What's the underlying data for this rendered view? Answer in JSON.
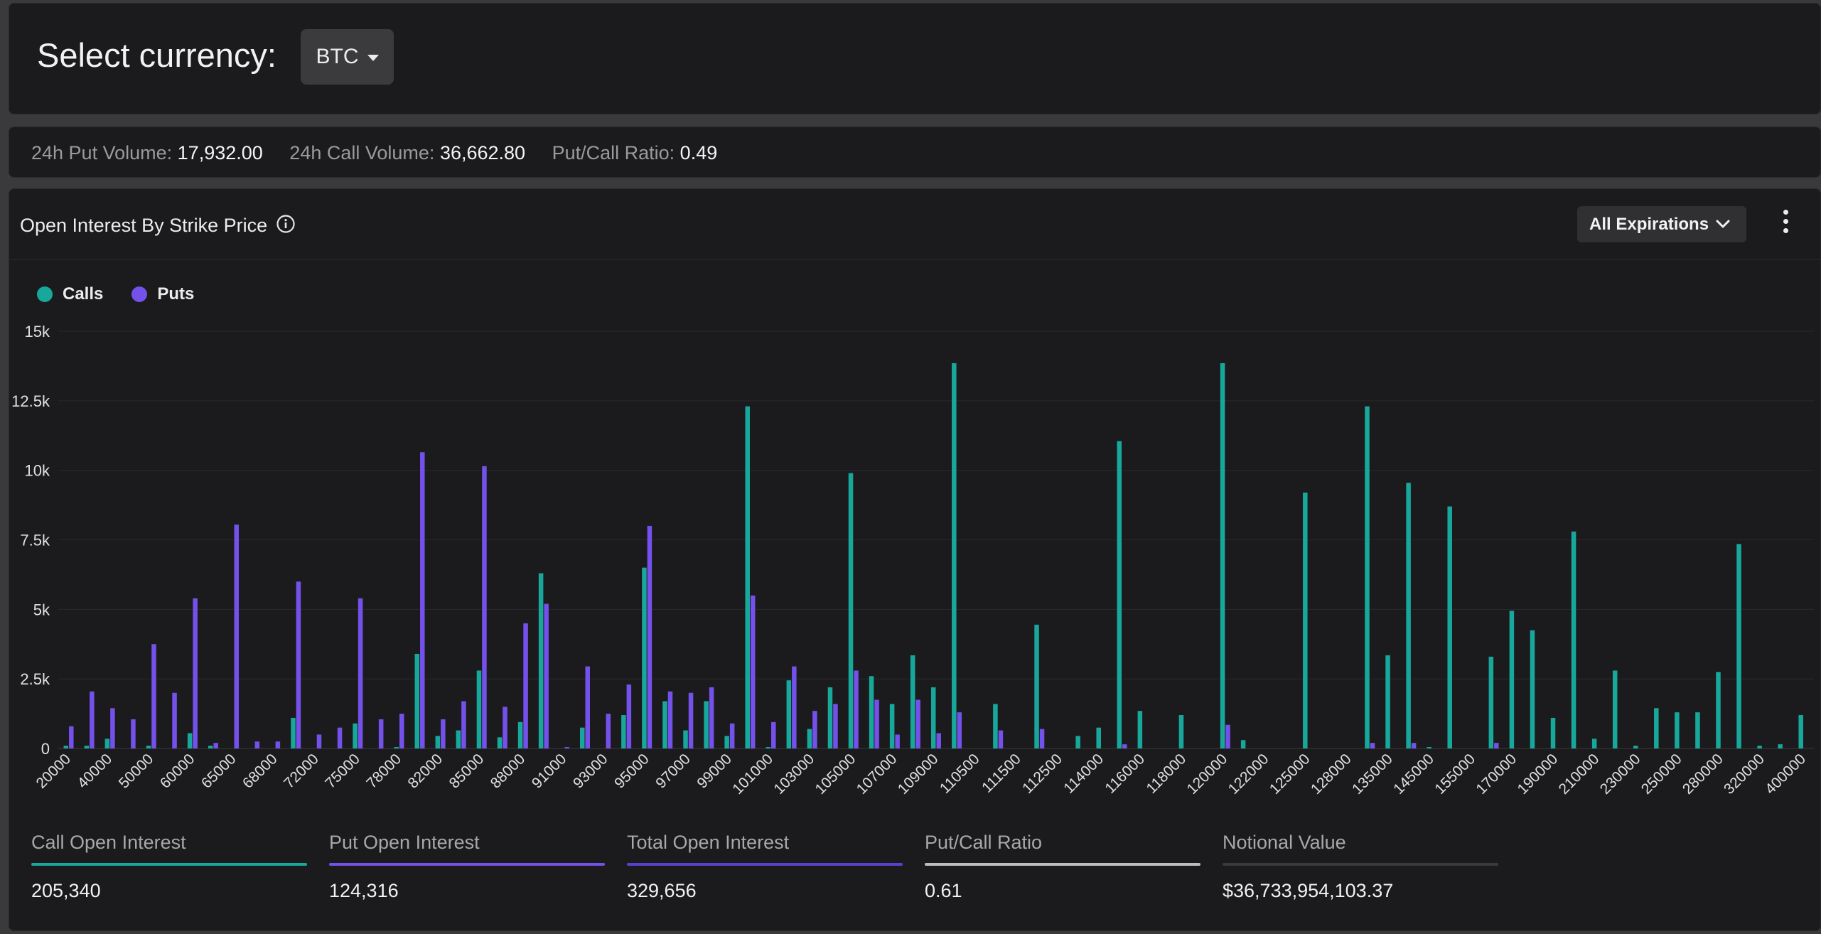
{
  "currency": {
    "label": "Select currency:",
    "selected": "BTC"
  },
  "volume": {
    "put_label": "24h Put Volume:",
    "put_value": "17,932.00",
    "call_label": "24h Call Volume:",
    "call_value": "36,662.80",
    "ratio_label": "Put/Call Ratio:",
    "ratio_value": "0.49"
  },
  "panel": {
    "title": "Open Interest By Strike Price",
    "expiry_button": "All Expirations"
  },
  "colors": {
    "calls": "#17a89b",
    "puts": "#7451ea",
    "total": "#5c3fd1",
    "ratio": "#bdbdbd",
    "notional": "#3a3a3c"
  },
  "stats": [
    {
      "label": "Call Open Interest",
      "value": "205,340",
      "color_key": "calls"
    },
    {
      "label": "Put Open Interest",
      "value": "124,316",
      "color_key": "puts"
    },
    {
      "label": "Total Open Interest",
      "value": "329,656",
      "color_key": "total"
    },
    {
      "label": "Put/Call Ratio",
      "value": "0.61",
      "color_key": "ratio"
    },
    {
      "label": "Notional Value",
      "value": "$36,733,954,103.37",
      "color_key": "notional"
    }
  ],
  "chart_data": {
    "type": "bar",
    "title": "",
    "xlabel": "",
    "ylabel": "",
    "ylim": [
      0,
      15000
    ],
    "yticks": [
      0,
      2500,
      5000,
      7500,
      10000,
      12500,
      15000
    ],
    "ytick_labels": [
      "0",
      "2.5k",
      "5k",
      "7.5k",
      "10k",
      "12.5k",
      "15k"
    ],
    "grid": true,
    "legend": "top-left",
    "categories": [
      "20000",
      "30000",
      "40000",
      "45000",
      "50000",
      "55000",
      "60000",
      "62000",
      "65000",
      "66000",
      "68000",
      "70000",
      "72000",
      "74000",
      "75000",
      "76000",
      "78000",
      "80000",
      "82000",
      "84000",
      "85000",
      "86000",
      "88000",
      "90000",
      "91000",
      "92000",
      "93000",
      "94000",
      "95000",
      "96000",
      "97000",
      "98000",
      "99000",
      "100000",
      "101000",
      "102000",
      "103000",
      "104000",
      "105000",
      "106000",
      "107000",
      "108000",
      "109000",
      "110000",
      "110500",
      "111000",
      "111500",
      "112000",
      "112500",
      "113000",
      "114000",
      "115000",
      "116000",
      "117000",
      "118000",
      "119000",
      "120000",
      "121000",
      "122000",
      "123000",
      "125000",
      "126000",
      "128000",
      "130000",
      "135000",
      "140000",
      "145000",
      "150000",
      "155000",
      "160000",
      "170000",
      "180000",
      "190000",
      "200000",
      "210000",
      "220000",
      "230000",
      "240000",
      "250000",
      "260000",
      "280000",
      "300000",
      "320000",
      "350000",
      "400000"
    ],
    "tick_labels": [
      "20000",
      "40000",
      "50000",
      "60000",
      "65000",
      "68000",
      "72000",
      "75000",
      "78000",
      "82000",
      "85000",
      "88000",
      "91000",
      "93000",
      "95000",
      "97000",
      "99000",
      "101000",
      "103000",
      "105000",
      "107000",
      "109000",
      "110500",
      "111500",
      "112500",
      "114000",
      "116000",
      "118000",
      "120000",
      "122000",
      "125000",
      "128000",
      "135000",
      "145000",
      "155000",
      "170000",
      "190000",
      "210000",
      "230000",
      "250000",
      "280000",
      "320000",
      "400000"
    ],
    "series": [
      {
        "name": "Calls",
        "values": [
          100,
          100,
          350,
          0,
          100,
          0,
          550,
          100,
          0,
          0,
          0,
          1100,
          0,
          0,
          900,
          0,
          50,
          3400,
          450,
          650,
          2800,
          400,
          950,
          6300,
          0,
          750,
          0,
          1200,
          6500,
          1700,
          650,
          1700,
          450,
          12300,
          50,
          2450,
          700,
          2200,
          9900,
          2600,
          1600,
          3350,
          2200,
          13850,
          0,
          1600,
          0,
          4450,
          0,
          450,
          750,
          11050,
          1350,
          0,
          1200,
          0,
          13850,
          300,
          0,
          0,
          9200,
          0,
          0,
          12300,
          3350,
          9550,
          50,
          8700,
          0,
          3300,
          4950,
          4250,
          1100,
          7800,
          350,
          2800,
          100,
          1450,
          1300,
          1300,
          2750,
          7350,
          100,
          150,
          1200
        ]
      },
      {
        "name": "Puts",
        "values": [
          800,
          2050,
          1450,
          1050,
          3750,
          2000,
          5400,
          200,
          8050,
          250,
          250,
          6000,
          500,
          750,
          5400,
          1050,
          1250,
          10650,
          1050,
          1700,
          10150,
          1500,
          4500,
          5200,
          50,
          2950,
          1250,
          2300,
          8000,
          2050,
          2000,
          2200,
          900,
          5500,
          950,
          2950,
          1350,
          1600,
          2800,
          1750,
          500,
          1750,
          550,
          1300,
          0,
          650,
          0,
          700,
          0,
          0,
          0,
          150,
          0,
          0,
          0,
          0,
          850,
          0,
          0,
          0,
          0,
          0,
          0,
          200,
          0,
          200,
          0,
          0,
          0,
          200,
          0,
          0,
          0,
          0,
          0,
          0,
          0,
          0,
          0,
          0,
          0,
          0,
          0,
          0,
          0
        ]
      }
    ]
  }
}
